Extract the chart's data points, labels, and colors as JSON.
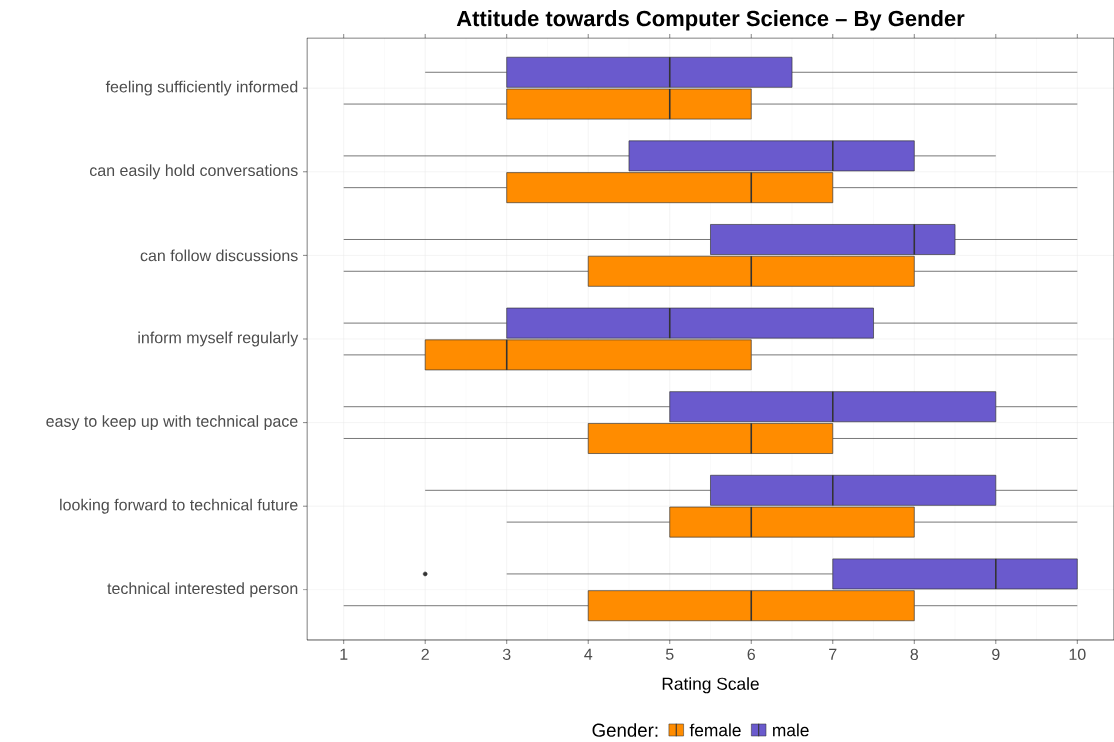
{
  "chart_data": {
    "type": "box",
    "title": "Attitude towards Computer Science – By Gender",
    "xlabel": "Rating Scale",
    "legend_title": "Gender:",
    "orientation": "horizontal",
    "grid": true,
    "legend": "bottom",
    "categories": [
      "feeling sufficiently informed",
      "can easily hold conversations",
      "can follow discussions",
      "inform myself regularly",
      "easy to keep up with technical pace",
      "looking forward to technical future",
      "technical interested person"
    ],
    "series": [
      {
        "name": "female",
        "color": "#ff8c00",
        "boxes": [
          {
            "low": 1,
            "q1": 3,
            "median": 5,
            "q3": 6,
            "high": 10
          },
          {
            "low": 1,
            "q1": 3,
            "median": 6,
            "q3": 7,
            "high": 10
          },
          {
            "low": 1,
            "q1": 4,
            "median": 6,
            "q3": 8,
            "high": 10
          },
          {
            "low": 1,
            "q1": 2,
            "median": 3,
            "q3": 6,
            "high": 10
          },
          {
            "low": 1,
            "q1": 4,
            "median": 6,
            "q3": 7,
            "high": 10
          },
          {
            "low": 3,
            "q1": 5,
            "median": 6,
            "q3": 8,
            "high": 10
          },
          {
            "low": 1,
            "q1": 4,
            "median": 6,
            "q3": 8,
            "high": 10
          }
        ]
      },
      {
        "name": "male",
        "color": "#6a5acd",
        "boxes": [
          {
            "low": 2,
            "q1": 3,
            "median": 5,
            "q3": 6.5,
            "high": 10
          },
          {
            "low": 1,
            "q1": 4.5,
            "median": 7,
            "q3": 8,
            "high": 9
          },
          {
            "low": 1,
            "q1": 5.5,
            "median": 8,
            "q3": 8.5,
            "high": 10
          },
          {
            "low": 1,
            "q1": 3,
            "median": 5,
            "q3": 7.5,
            "high": 10
          },
          {
            "low": 1,
            "q1": 5,
            "median": 7,
            "q3": 9,
            "high": 10
          },
          {
            "low": 2,
            "q1": 5.5,
            "median": 7,
            "q3": 9,
            "high": 10
          },
          {
            "low": 3,
            "q1": 7,
            "median": 9,
            "q3": 10,
            "high": 10,
            "outliers": [
              2
            ]
          }
        ]
      }
    ],
    "xlim": [
      0.55,
      10.45
    ],
    "xticks": [
      1,
      2,
      3,
      4,
      5,
      6,
      7,
      8,
      9,
      10
    ]
  }
}
